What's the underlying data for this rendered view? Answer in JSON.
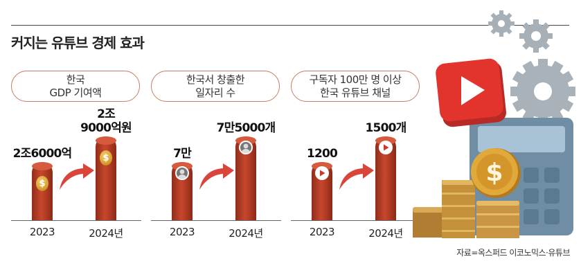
{
  "title": "커지는 유튜브 경제 효과",
  "source": "자료=옥스퍼드 이코노믹스·유튜브",
  "colors": {
    "bar": "#b63d25",
    "pill_border": "#c9806a",
    "arrow": "#d9453a"
  },
  "chart_data": [
    {
      "type": "bar",
      "title": "한국\nGDP 기여액",
      "categories": [
        "2023",
        "2024년"
      ],
      "values": [
        26000,
        29000
      ],
      "value_labels": [
        "2조6000억",
        "2조\n9000억원"
      ],
      "unit": "억원",
      "icon": "coin-icon"
    },
    {
      "type": "bar",
      "title": "한국서 창출한\n일자리 수",
      "categories": [
        "2023",
        "2024년"
      ],
      "values": [
        70000,
        75000
      ],
      "value_labels": [
        "7만",
        "7만5000개"
      ],
      "icon": "person-icon"
    },
    {
      "type": "bar",
      "title": "구독자 100만 명 이상\n한국 유튜브 채널",
      "categories": [
        "2023",
        "2024년"
      ],
      "values": [
        1200,
        1500
      ],
      "value_labels": [
        "1200",
        "1500개"
      ],
      "icon": "play-icon"
    }
  ]
}
